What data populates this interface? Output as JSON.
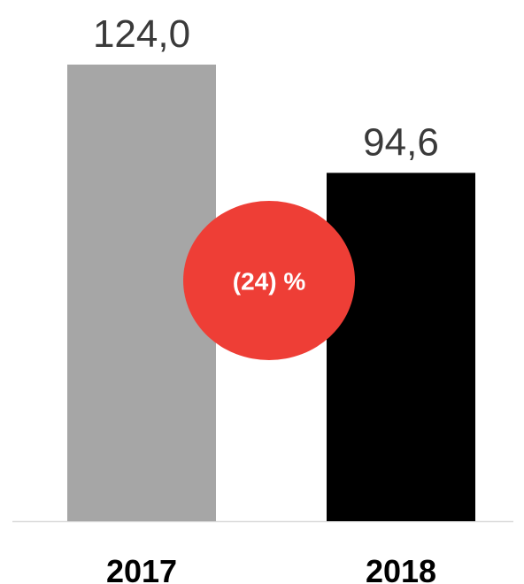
{
  "chart_data": {
    "type": "bar",
    "categories": [
      "2017",
      "2018"
    ],
    "values": [
      124.0,
      94.6
    ],
    "value_labels": [
      "124,0",
      "94,6"
    ],
    "ylim": [
      0,
      124.0
    ],
    "grid": false,
    "legend": "none",
    "title": "",
    "xlabel": "",
    "ylabel": "",
    "bar_colors": [
      "#a6a6a6",
      "#000000"
    ],
    "change_badge": {
      "text": "(24) %",
      "color": "#ee3e36",
      "text_color": "#ffffff"
    },
    "axis_color": "#d9d9d9"
  }
}
